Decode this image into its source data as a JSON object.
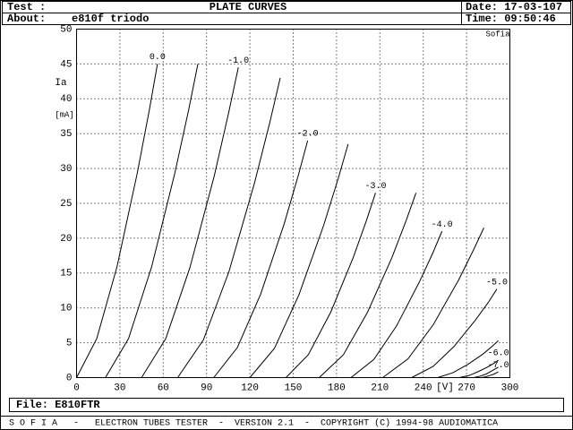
{
  "header": {
    "test_label": "Test :",
    "title": "PLATE CURVES",
    "date": "Date: 17-03-107",
    "about_label": "About:",
    "about": "e810f triodo",
    "time": "Time: 09:50:46"
  },
  "chart_data": {
    "type": "line",
    "color": "#000000",
    "watermark": "Sofia",
    "x_label": "[V]",
    "y_label": "Ia",
    "y_unit": "[mA]",
    "xlim": [
      0,
      300
    ],
    "xticks": [
      0,
      30,
      60,
      90,
      120,
      150,
      180,
      210,
      240,
      270,
      300
    ],
    "ylim": [
      0,
      50
    ],
    "yticks": [
      0,
      5,
      10,
      15,
      20,
      25,
      30,
      35,
      40,
      45,
      50
    ],
    "grid": true,
    "series": [
      {
        "name": "0.0",
        "x": [
          0,
          14,
          28,
          42,
          50.4,
          56
        ],
        "values": [
          0,
          5.6,
          15.9,
          29.3,
          38.4,
          45
        ]
      },
      {
        "x": [
          20,
          36,
          52,
          68,
          77.6,
          84
        ],
        "values": [
          0,
          5.6,
          15.9,
          29.3,
          38.4,
          45
        ]
      },
      {
        "name": "-1.0",
        "x": [
          45,
          61.8,
          78.5,
          95.3,
          105.3,
          112
        ],
        "values": [
          0,
          5.6,
          15.8,
          28.9,
          38,
          44.5
        ]
      },
      {
        "x": [
          70,
          87.8,
          105.5,
          123.3,
          133.9,
          141
        ],
        "values": [
          0,
          5.4,
          15.2,
          28,
          36.7,
          43
        ]
      },
      {
        "name": "-2.0",
        "x": [
          95,
          111.3,
          127.5,
          143.8,
          153.5,
          160
        ],
        "values": [
          0,
          4.3,
          12,
          22.1,
          29,
          34
        ]
      },
      {
        "x": [
          120,
          137,
          154,
          171,
          181.2,
          188
        ],
        "values": [
          0,
          4.2,
          11.9,
          21.8,
          28.6,
          33.5
        ]
      },
      {
        "name": "-3.0",
        "x": [
          145,
          160.5,
          176,
          191.5,
          200.8,
          207
        ],
        "values": [
          0,
          3.3,
          9.4,
          17.2,
          22.6,
          26.5
        ]
      },
      {
        "x": [
          168,
          184.8,
          201.5,
          218.3,
          228.3,
          235
        ],
        "values": [
          0,
          3.3,
          9.4,
          17.2,
          22.6,
          26.5
        ]
      },
      {
        "name": "-4.0",
        "x": [
          190,
          205.8,
          221.5,
          237.3,
          246.7,
          253
        ],
        "values": [
          0,
          2.6,
          7.4,
          13.7,
          17.9,
          21
        ]
      },
      {
        "x": [
          212,
          229.5,
          247,
          264.5,
          275,
          282
        ],
        "values": [
          0,
          2.7,
          7.6,
          14,
          18.4,
          21.5
        ]
      },
      {
        "name": "-5.0",
        "x": [
          232,
          246.8,
          261.5,
          276.3,
          285.1,
          291
        ],
        "values": [
          0,
          1.6,
          4.5,
          8.3,
          10.8,
          12.7
        ]
      },
      {
        "x": [
          250,
          260.5,
          271,
          281.5,
          287.8,
          292
        ],
        "values": [
          0,
          0.7,
          1.9,
          3.4,
          4.5,
          5.3
        ]
      },
      {
        "name": "-6.0",
        "x": [
          265,
          271.8,
          278.5,
          285.3,
          289.3,
          292
        ],
        "values": [
          0,
          0.3,
          0.9,
          1.6,
          2.1,
          2.5
        ]
      },
      {
        "x": [
          275,
          279.3,
          283.5,
          287.8,
          290.3,
          292
        ],
        "values": [
          0,
          0.2,
          0.5,
          1,
          1.3,
          1.5
        ]
      },
      {
        "name": "-7.0",
        "x": [
          280,
          283,
          286,
          289,
          290.8,
          292
        ],
        "values": [
          0,
          0.1,
          0.3,
          0.5,
          0.7,
          0.8
        ]
      }
    ]
  },
  "footer": {
    "file": "File: E810FTR",
    "status": "S O F I A   -   ELECTRON TUBES TESTER  -  VERSION 2.1  -  COPYRIGHT (C) 1994-98 AUDIOMATICA"
  }
}
